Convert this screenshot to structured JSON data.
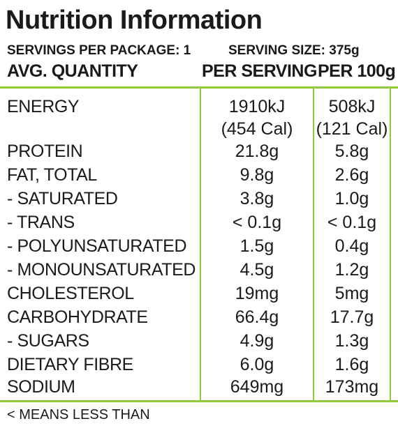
{
  "panel": {
    "title": "Nutrition Information",
    "servings_per_package": "SERVINGS PER PACKAGE: 1",
    "serving_size": "SERVING SIZE: 375g",
    "col_quantity": "AVG. QUANTITY",
    "col_per_serving": "PER SERVING",
    "col_per_100g": "PER 100g",
    "energy": {
      "name": "ENERGY",
      "per_serving_kj": "1910kJ",
      "per_serving_cal": "(454 Cal)",
      "per_100g_kj": "508kJ",
      "per_100g_cal": "(121 Cal)"
    },
    "rows": [
      {
        "name": "PROTEIN",
        "per_serving": "21.8g",
        "per_100g": "5.8g"
      },
      {
        "name": "FAT, TOTAL",
        "per_serving": "9.8g",
        "per_100g": "2.6g"
      },
      {
        "name": "- SATURATED",
        "per_serving": "3.8g",
        "per_100g": "1.0g"
      },
      {
        "name": "- TRANS",
        "per_serving": "< 0.1g",
        "per_100g": "< 0.1g"
      },
      {
        "name": "- POLYUNSATURATED",
        "per_serving": "1.5g",
        "per_100g": "0.4g"
      },
      {
        "name": "- MONOUNSATURATED",
        "per_serving": "4.5g",
        "per_100g": "1.2g"
      },
      {
        "name": "CHOLESTEROL",
        "per_serving": "19mg",
        "per_100g": "5mg"
      },
      {
        "name": "CARBOHYDRATE",
        "per_serving": "66.4g",
        "per_100g": "17.7g"
      },
      {
        "name": "- SUGARS",
        "per_serving": "4.9g",
        "per_100g": "1.3g"
      },
      {
        "name": "DIETARY FIBRE",
        "per_serving": "6.0g",
        "per_100g": "1.6g"
      },
      {
        "name": "SODIUM",
        "per_serving": "649mg",
        "per_100g": "173mg"
      }
    ],
    "footnote": "< MEANS LESS THAN",
    "accent_color": "#93c83d"
  }
}
